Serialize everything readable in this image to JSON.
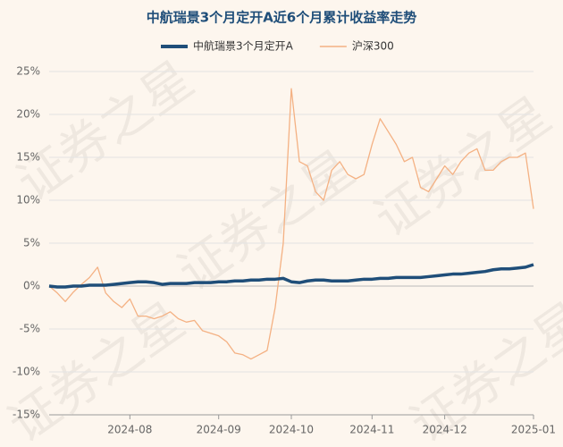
{
  "chart_data": {
    "type": "line",
    "title": "中航瑞景3个月定开A近6个月累计收益率走势",
    "watermark": "证券之星",
    "categories": [
      null,
      null,
      null,
      null,
      null,
      null,
      null,
      null,
      null,
      null,
      "2024-08",
      null,
      null,
      null,
      null,
      null,
      null,
      null,
      null,
      null,
      null,
      "2024-09",
      null,
      null,
      null,
      null,
      null,
      null,
      null,
      null,
      "2024-10",
      null,
      null,
      null,
      null,
      null,
      null,
      null,
      null,
      null,
      "2024-11",
      null,
      null,
      null,
      null,
      null,
      null,
      null,
      null,
      "2024-12",
      null,
      null,
      null,
      null,
      null,
      null,
      null,
      null,
      null,
      null,
      "2025-01"
    ],
    "series": [
      {
        "name": "中航瑞景3个月定开A",
        "color": "#1f4e79",
        "values": [
          0,
          -0.1,
          -0.1,
          0,
          0,
          0.1,
          0.1,
          0.1,
          0.2,
          0.3,
          0.4,
          0.5,
          0.5,
          0.4,
          0.2,
          0.3,
          0.3,
          0.3,
          0.4,
          0.4,
          0.4,
          0.5,
          0.5,
          0.6,
          0.6,
          0.7,
          0.7,
          0.8,
          0.8,
          0.9,
          0.5,
          0.4,
          0.6,
          0.7,
          0.7,
          0.6,
          0.6,
          0.6,
          0.7,
          0.8,
          0.8,
          0.9,
          0.9,
          1.0,
          1.0,
          1.0,
          1.0,
          1.1,
          1.2,
          1.3,
          1.4,
          1.4,
          1.5,
          1.6,
          1.7,
          1.9,
          2.0,
          2.0,
          2.1,
          2.2,
          2.5
        ]
      },
      {
        "name": "沪深300",
        "color": "#f4b183",
        "values": [
          0,
          -0.8,
          -1.8,
          -0.7,
          0.2,
          1.0,
          2.2,
          -0.8,
          -1.8,
          -2.5,
          -1.5,
          -3.5,
          -3.5,
          -3.8,
          -3.5,
          -3.0,
          -3.8,
          -4.2,
          -4.0,
          -5.2,
          -5.5,
          -5.8,
          -6.5,
          -7.8,
          -8.0,
          -8.5,
          -8.0,
          -7.5,
          -2.5,
          5.0,
          23.0,
          14.5,
          14.0,
          11.0,
          10.0,
          13.5,
          14.5,
          13.0,
          12.5,
          13.0,
          16.5,
          19.5,
          18.0,
          16.5,
          14.5,
          15.0,
          11.5,
          11.0,
          12.5,
          14.0,
          13.0,
          14.5,
          15.5,
          16.0,
          13.5,
          13.5,
          14.5,
          15.0,
          15.0,
          15.5,
          9.0
        ]
      }
    ],
    "ylim": [
      -15,
      25
    ],
    "yticks": [
      {
        "value": -15,
        "label": "-15%"
      },
      {
        "value": -10,
        "label": "-10%"
      },
      {
        "value": -5,
        "label": "-5%"
      },
      {
        "value": 0,
        "label": "0%"
      },
      {
        "value": 5,
        "label": "5%"
      },
      {
        "value": 10,
        "label": "10%"
      },
      {
        "value": 15,
        "label": "15%"
      },
      {
        "value": 20,
        "label": "20%"
      },
      {
        "value": 25,
        "label": "25%"
      }
    ],
    "grid": true
  }
}
